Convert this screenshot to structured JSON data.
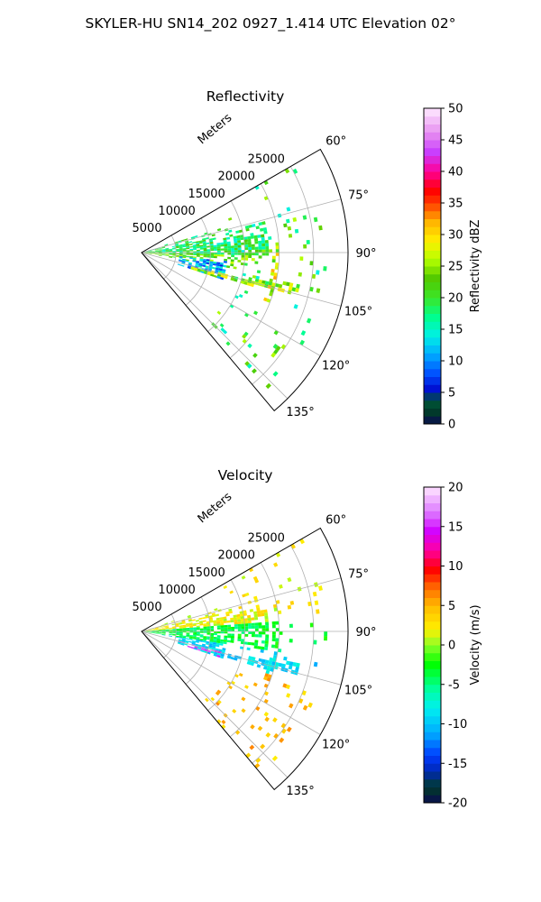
{
  "figure": {
    "suptitle": "SKYLER-HU  SN14_202  0927_1.414 UTC Elevation 02°"
  },
  "chart_data": [
    {
      "type": "heatmap",
      "subtype": "polar-sector (radar PPI)",
      "title": "Reflectivity",
      "radial_label": "Meters",
      "radial_ticks": [
        "5000",
        "10000",
        "15000",
        "20000",
        "25000"
      ],
      "radial_range": [
        0,
        30000
      ],
      "angle_ticks": [
        "60°",
        "75°",
        "90°",
        "105°",
        "120°",
        "135°"
      ],
      "angle_range_deg": [
        60,
        140
      ],
      "grid": true,
      "colorbar": {
        "label": "Reflectivity dBZ",
        "min": 0,
        "max": 50,
        "ticks": [
          "0",
          "5",
          "10",
          "15",
          "20",
          "25",
          "30",
          "35",
          "40",
          "45",
          "50"
        ]
      },
      "field": "reflectivity",
      "colors": [
        "#0a0a6e",
        "#0000c8",
        "#0050ff",
        "#00b4ff",
        "#00ffc8",
        "#00ff64",
        "#32d200",
        "#a0ff00",
        "#fff000",
        "#ffaa00",
        "#ff3c00",
        "#ff0000",
        "#ff00c8",
        "#c850ff",
        "#ffc8ff"
      ]
    },
    {
      "type": "heatmap",
      "subtype": "polar-sector (radar PPI)",
      "title": "Velocity",
      "radial_label": "Meters",
      "radial_ticks": [
        "5000",
        "10000",
        "15000",
        "20000",
        "25000"
      ],
      "radial_range": [
        0,
        30000
      ],
      "angle_ticks": [
        "60°",
        "75°",
        "90°",
        "105°",
        "120°",
        "135°"
      ],
      "angle_range_deg": [
        60,
        140
      ],
      "grid": true,
      "colorbar": {
        "label": "Velocity (m/s)",
        "min": -20,
        "max": 20,
        "ticks": [
          "-20",
          "-15",
          "-10",
          "-5",
          "0",
          "5",
          "10",
          "15",
          "20"
        ]
      },
      "field": "velocity"
    }
  ]
}
